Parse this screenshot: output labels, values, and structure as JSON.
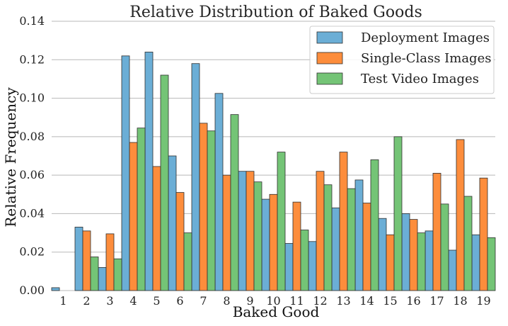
{
  "chart_data": {
    "type": "bar",
    "title": "Relative Distribution of Baked Goods",
    "xlabel": "Baked Good",
    "ylabel": "Relative Frequency",
    "ylim": [
      0,
      0.14
    ],
    "yticks": [
      "0.00",
      "0.02",
      "0.04",
      "0.06",
      "0.08",
      "0.10",
      "0.12",
      "0.14"
    ],
    "grid": "horizontal",
    "legend_position": "top-right",
    "categories": [
      "1",
      "2",
      "3",
      "4",
      "5",
      "6",
      "7",
      "8",
      "9",
      "10",
      "11",
      "12",
      "13",
      "14",
      "15",
      "16",
      "17",
      "18",
      "19"
    ],
    "series": [
      {
        "name": "Deployment Images",
        "color": "#6baed6",
        "values": [
          0.0015,
          0.033,
          0.012,
          0.122,
          0.124,
          0.07,
          0.118,
          0.1025,
          0.062,
          0.0475,
          0.0245,
          0.0255,
          0.043,
          0.0575,
          0.0375,
          0.04,
          0.031,
          0.021,
          0.029
        ]
      },
      {
        "name": "Single-Class Images",
        "color": "#fd8d3c",
        "values": [
          0.0,
          0.031,
          0.0295,
          0.077,
          0.0645,
          0.051,
          0.087,
          0.06,
          0.062,
          0.05,
          0.046,
          0.062,
          0.072,
          0.0455,
          0.029,
          0.037,
          0.061,
          0.0785,
          0.0585
        ]
      },
      {
        "name": "Test Video Images",
        "color": "#74c476",
        "values": [
          0.0,
          0.0175,
          0.0165,
          0.0845,
          0.112,
          0.03,
          0.083,
          0.0915,
          0.0565,
          0.072,
          0.0315,
          0.055,
          0.053,
          0.068,
          0.08,
          0.03,
          0.045,
          0.049,
          0.0275
        ]
      }
    ]
  }
}
